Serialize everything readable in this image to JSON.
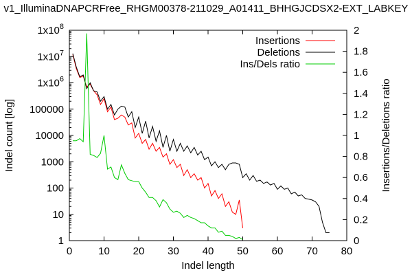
{
  "chart_data": {
    "type": "line",
    "title": "v1_IlluminaDNAPCRFree_RHGM00378-211029_A01411_BHHGJCDSX2-EXT_LABKEY",
    "xlabel": "Indel length",
    "ylabel": "Indel count [log]",
    "y2label": "Insertions/Deletions ratio",
    "xlim": [
      0,
      80
    ],
    "ylim": [
      1,
      100000000
    ],
    "y2lim": [
      0,
      2
    ],
    "yscale": "log",
    "xticks": [
      "0",
      "10",
      "20",
      "30",
      "40",
      "50",
      "60",
      "70",
      "80"
    ],
    "yticks": [
      "1",
      "10",
      "100",
      "1000",
      "10000",
      "100000",
      "1x10^6",
      "1x10^7",
      "1x10^8"
    ],
    "y2ticks": [
      "0",
      "0.2",
      "0.4",
      "0.6",
      "0.8",
      "1",
      "1.2",
      "1.4",
      "1.6",
      "1.8",
      "2"
    ],
    "grid": false,
    "legend_position": "top-right",
    "series": [
      {
        "name": "Insertions",
        "color": "#ff0000",
        "axis": "left",
        "x": [
          1,
          2,
          3,
          4,
          5,
          6,
          7,
          8,
          9,
          10,
          11,
          12,
          13,
          14,
          15,
          16,
          17,
          18,
          19,
          20,
          21,
          22,
          23,
          24,
          25,
          26,
          27,
          28,
          29,
          30,
          31,
          32,
          33,
          34,
          35,
          36,
          37,
          38,
          39,
          40,
          41,
          42,
          43,
          44,
          45,
          46,
          47,
          48,
          49,
          50
        ],
        "y": [
          12000000,
          3500000,
          1600000,
          1800000,
          700000,
          900000,
          500000,
          350000,
          150000,
          250000,
          80000,
          120000,
          40000,
          45000,
          60000,
          50000,
          25000,
          30000,
          8000,
          12000,
          5000,
          7000,
          3000,
          5000,
          2500,
          3500,
          1500,
          2000,
          800,
          1200,
          600,
          800,
          300,
          500,
          250,
          350,
          200,
          250,
          100,
          150,
          50,
          80,
          40,
          60,
          20,
          30,
          12,
          10,
          35,
          3
        ]
      },
      {
        "name": "Deletions",
        "color": "#000000",
        "axis": "left",
        "x": [
          1,
          2,
          3,
          4,
          5,
          6,
          7,
          8,
          9,
          10,
          11,
          12,
          13,
          14,
          15,
          16,
          17,
          18,
          19,
          20,
          21,
          22,
          23,
          24,
          25,
          26,
          27,
          28,
          29,
          30,
          31,
          32,
          33,
          34,
          35,
          36,
          37,
          38,
          39,
          40,
          41,
          42,
          43,
          44,
          45,
          46,
          47,
          48,
          49,
          50,
          51,
          52,
          53,
          54,
          55,
          56,
          57,
          58,
          59,
          60,
          61,
          62,
          63,
          64,
          65,
          66,
          67,
          68,
          69,
          70,
          71,
          72,
          73,
          74,
          75
        ],
        "y": [
          13000000,
          4000000,
          1700000,
          2000000,
          600000,
          1000000,
          500000,
          450000,
          200000,
          300000,
          100000,
          150000,
          60000,
          100000,
          130000,
          120000,
          50000,
          80000,
          20000,
          50000,
          12000,
          35000,
          8000,
          22000,
          6000,
          15000,
          3500,
          10000,
          2500,
          7000,
          2500,
          5000,
          2500,
          4000,
          2200,
          3500,
          1800,
          2500,
          1200,
          1500,
          700,
          1000,
          600,
          800,
          500,
          800,
          900,
          900,
          800,
          250,
          350,
          200,
          300,
          180,
          200,
          150,
          170,
          130,
          150,
          90,
          120,
          90,
          100,
          60,
          70,
          50,
          55,
          40,
          38,
          35,
          30,
          20,
          5,
          2,
          2
        ]
      },
      {
        "name": "Ins/Dels ratio",
        "color": "#00cc00",
        "axis": "right",
        "x": [
          1,
          2,
          3,
          4,
          5,
          6,
          7,
          8,
          9,
          10,
          11,
          12,
          13,
          14,
          15,
          16,
          17,
          18,
          19,
          20,
          21,
          22,
          23,
          24,
          25,
          26,
          27,
          28,
          29,
          30,
          31,
          32,
          33,
          34,
          35,
          36,
          37,
          38,
          39,
          40,
          41,
          42,
          43,
          44,
          45,
          46,
          47,
          48,
          49,
          50
        ],
        "y": [
          0.95,
          0.95,
          0.97,
          0.94,
          1.97,
          0.82,
          0.81,
          0.79,
          0.83,
          1.0,
          0.68,
          0.7,
          0.6,
          0.58,
          0.72,
          0.64,
          0.58,
          0.57,
          0.56,
          0.56,
          0.5,
          0.46,
          0.41,
          0.41,
          0.38,
          0.32,
          0.39,
          0.36,
          0.3,
          0.27,
          0.28,
          0.26,
          0.22,
          0.24,
          0.22,
          0.21,
          0.19,
          0.17,
          0.17,
          0.14,
          0.12,
          0.12,
          0.08,
          0.09,
          0.05,
          0.05,
          0.04,
          0.02,
          0.03,
          0.01
        ]
      }
    ]
  }
}
